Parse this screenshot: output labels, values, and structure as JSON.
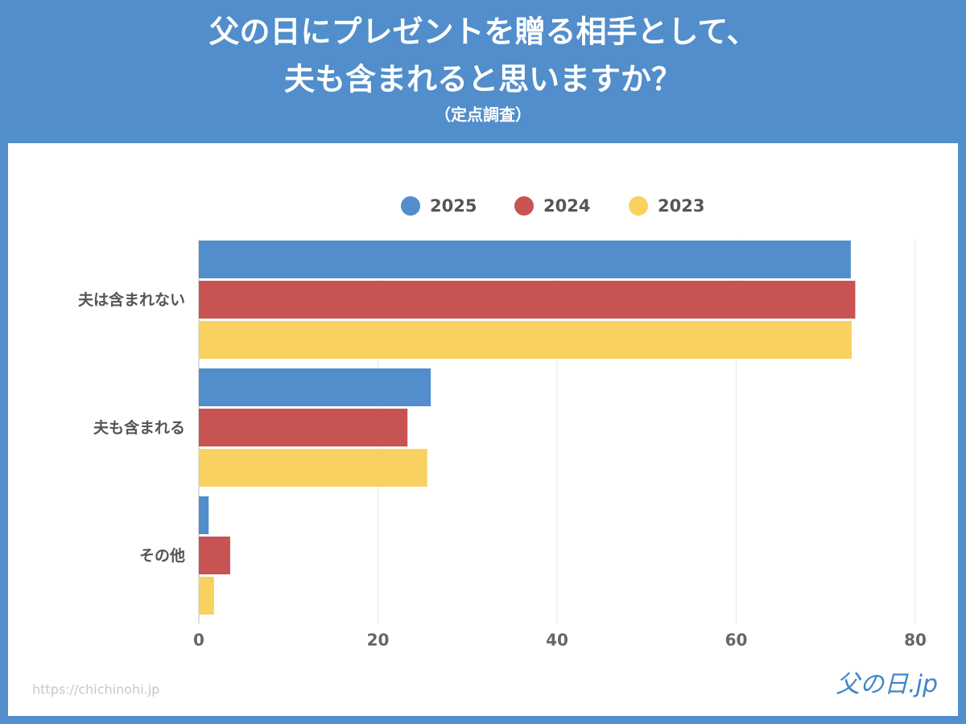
{
  "chart_data": {
    "type": "bar",
    "orientation": "horizontal",
    "title": [
      "父の日にプレゼントを贈る相手として、",
      "夫も含まれると思いますか？"
    ],
    "subtitle": "（定点調査）",
    "categories": [
      "夫は含まれない",
      "夫も含まれる",
      "その他"
    ],
    "series": [
      {
        "name": "2025",
        "color": "#518ecb",
        "values": [
          72.8,
          25.9,
          1.1
        ]
      },
      {
        "name": "2024",
        "color": "#c85353",
        "values": [
          73.3,
          23.3,
          3.5
        ]
      },
      {
        "name": "2023",
        "color": "#f9d160",
        "values": [
          72.9,
          25.5,
          1.7
        ]
      }
    ],
    "xlim": [
      0,
      80
    ],
    "xticks": [
      0,
      20,
      40,
      60,
      80
    ],
    "grid": true,
    "source": "https://chichinohi.jp",
    "logo": "父の日.jp"
  }
}
